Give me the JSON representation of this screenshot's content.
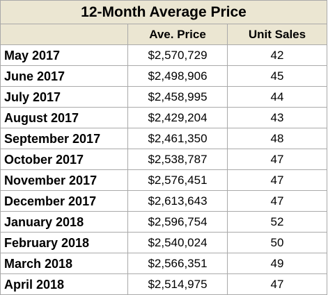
{
  "table": {
    "title": "12-Month Average Price",
    "columns": [
      "",
      "Ave. Price",
      "Unit Sales"
    ],
    "rows": [
      {
        "month": "May 2017",
        "price": "$2,570,729",
        "sales": "42"
      },
      {
        "month": "June 2017",
        "price": "$2,498,906",
        "sales": "45"
      },
      {
        "month": "July 2017",
        "price": "$2,458,995",
        "sales": "44"
      },
      {
        "month": "August 2017",
        "price": "$2,429,204",
        "sales": "43"
      },
      {
        "month": "September 2017",
        "price": "$2,461,350",
        "sales": "48"
      },
      {
        "month": "October 2017",
        "price": "$2,538,787",
        "sales": "47"
      },
      {
        "month": "November 2017",
        "price": "$2,576,451",
        "sales": "47"
      },
      {
        "month": "December 2017",
        "price": "$2,613,643",
        "sales": "47"
      },
      {
        "month": "January 2018",
        "price": "$2,596,754",
        "sales": "52"
      },
      {
        "month": "February 2018",
        "price": "$2,540,024",
        "sales": "50"
      },
      {
        "month": "March 2018",
        "price": "$2,566,351",
        "sales": "49"
      },
      {
        "month": "April 2018",
        "price": "$2,514,975",
        "sales": "47"
      }
    ]
  },
  "colors": {
    "header_background": "#ebe6d2",
    "grid_lines": "#a9a9a9",
    "text": "#000000"
  }
}
